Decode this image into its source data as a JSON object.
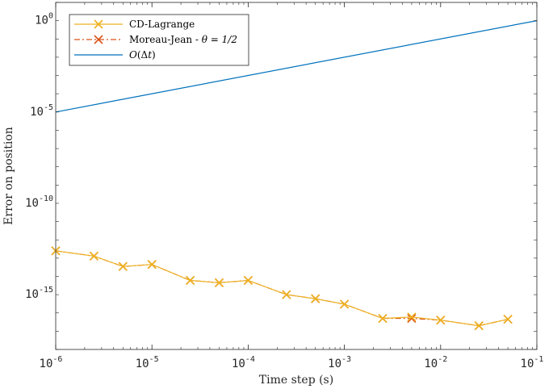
{
  "chart_data": {
    "type": "line",
    "xscale": "log",
    "yscale": "log",
    "xlim": [
      1e-06,
      0.1
    ],
    "ylim": [
      1e-18,
      10.0
    ],
    "xlabel": "Time step (s)",
    "ylabel": "Error on position",
    "xtick_labels": [
      {
        "base": "10",
        "exp": "-6"
      },
      {
        "base": "10",
        "exp": "-5"
      },
      {
        "base": "10",
        "exp": "-4"
      },
      {
        "base": "10",
        "exp": "-3"
      },
      {
        "base": "10",
        "exp": "-2"
      },
      {
        "base": "10",
        "exp": "-1"
      }
    ],
    "ytick_labels": [
      {
        "base": "10",
        "exp": "0"
      },
      {
        "base": "10",
        "exp": "-5"
      },
      {
        "base": "10",
        "exp": "-10"
      },
      {
        "base": "10",
        "exp": "-15"
      }
    ],
    "legend_position": "top-left",
    "series": [
      {
        "name": "CD-Lagrange",
        "color": "#EDB120",
        "style": "solid",
        "marker": "x",
        "x": [
          1e-06,
          2.5e-06,
          5e-06,
          1e-05,
          2.5e-05,
          5e-05,
          0.0001,
          0.00025,
          0.0005,
          0.001,
          0.0025,
          0.005,
          0.01,
          0.025,
          0.05
        ],
        "y": [
          2.5e-13,
          1.3e-13,
          3.5e-14,
          4.5e-14,
          6e-15,
          4.5e-15,
          6e-15,
          1e-15,
          6e-16,
          3e-16,
          5e-17,
          6e-17,
          4e-17,
          2e-17,
          4.5e-17
        ]
      },
      {
        "name": "Moreau-Jean - θ = 1/2",
        "color": "#D95319",
        "style": "dash-dot",
        "marker": "x",
        "x": [
          1e-06,
          2.5e-06,
          5e-06,
          1e-05,
          2.5e-05,
          5e-05,
          0.0001,
          0.00025,
          0.0005,
          0.001,
          0.0025,
          0.005,
          0.01,
          0.025,
          0.05
        ],
        "y": [
          2.5e-13,
          1.3e-13,
          3.5e-14,
          4.5e-14,
          6e-15,
          4.5e-15,
          6e-15,
          1e-15,
          6e-16,
          3e-16,
          5e-17,
          5e-17,
          4e-17,
          2e-17,
          4.5e-17
        ]
      },
      {
        "name": "O(Δt)",
        "color": "#0072BD",
        "style": "solid",
        "marker": "none",
        "x": [
          1e-06,
          0.1
        ],
        "y": [
          1e-05,
          1
        ]
      }
    ],
    "legend": [
      {
        "pre": "CD-Lagrange",
        "math": "",
        "post": ""
      },
      {
        "pre": "Moreau-Jean - ",
        "math": "θ = 1/2",
        "post": ""
      },
      {
        "pre": "",
        "math": "O",
        "post": "(Δ",
        "math2": "t",
        "post2": ")"
      }
    ]
  }
}
